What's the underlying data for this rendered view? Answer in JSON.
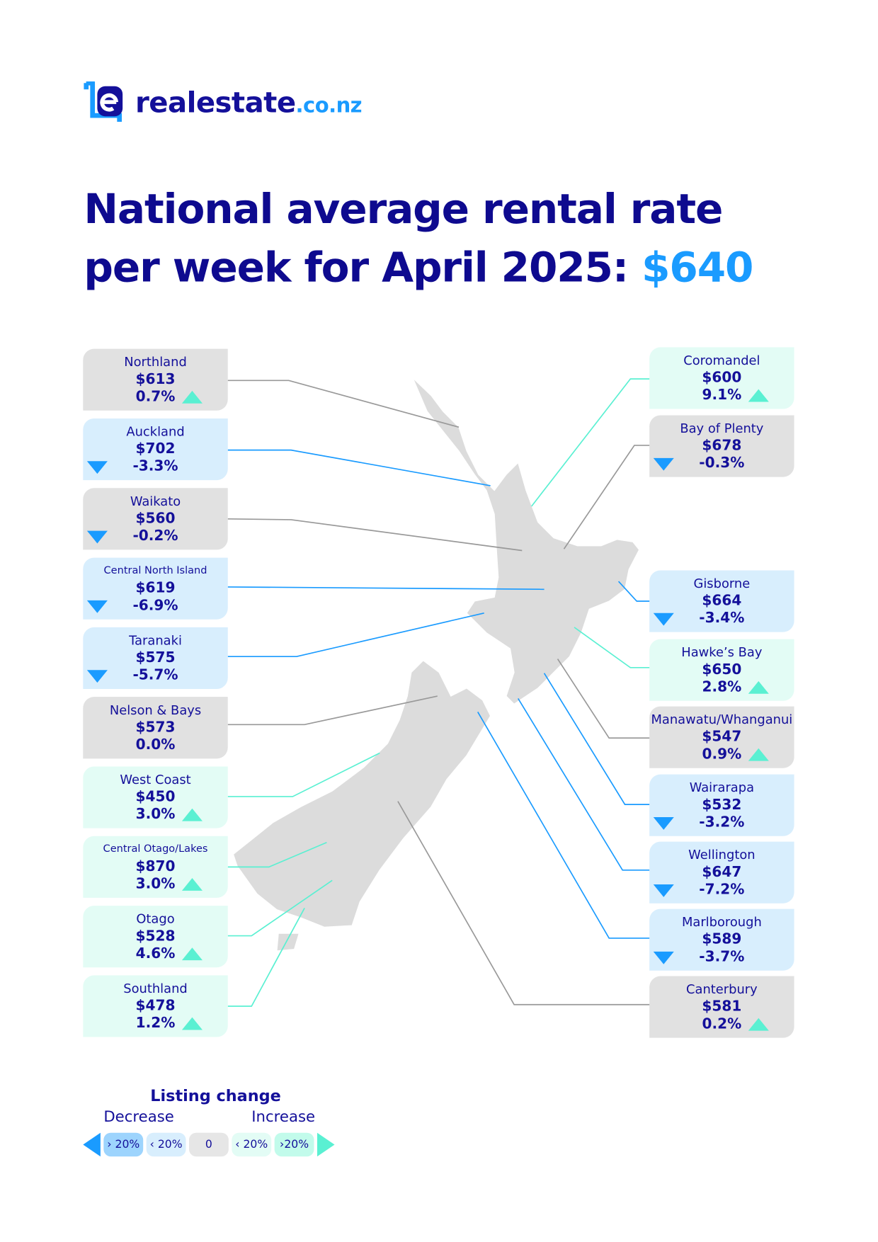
{
  "logo": {
    "name": "realestate",
    "suffix": ".co.nz"
  },
  "title": {
    "line1": "National average rental rate",
    "line2": "per week for April 2025: ",
    "price": "$640"
  },
  "colors": {
    "navy": "#14109a",
    "accent": "#1a9bff",
    "increase": "#5af0d2",
    "neutral_card": "#e1e1e1",
    "decrease_card": "#d8eefd",
    "increase_card": "#e3fcf5"
  },
  "regions_left": [
    {
      "name": "Northland",
      "price": "$613",
      "change": "0.7%",
      "direction": "up"
    },
    {
      "name": "Auckland",
      "price": "$702",
      "change": "-3.3%",
      "direction": "down"
    },
    {
      "name": "Waikato",
      "price": "$560",
      "change": "-0.2%",
      "direction": "down"
    },
    {
      "name": "Central North Island",
      "price": "$619",
      "change": "-6.9%",
      "direction": "down"
    },
    {
      "name": "Taranaki",
      "price": "$575",
      "change": "-5.7%",
      "direction": "down"
    },
    {
      "name": "Nelson & Bays",
      "price": "$573",
      "change": "0.0%",
      "direction": "none"
    },
    {
      "name": "West Coast",
      "price": "$450",
      "change": "3.0%",
      "direction": "up"
    },
    {
      "name": "Central Otago/Lakes",
      "price": "$870",
      "change": "3.0%",
      "direction": "up"
    },
    {
      "name": "Otago",
      "price": "$528",
      "change": "4.6%",
      "direction": "up"
    },
    {
      "name": "Southland",
      "price": "$478",
      "change": "1.2%",
      "direction": "up"
    }
  ],
  "regions_right": [
    {
      "name": "Coromandel",
      "price": "$600",
      "change": "9.1%",
      "direction": "up"
    },
    {
      "name": "Bay of Plenty",
      "price": "$678",
      "change": "-0.3%",
      "direction": "down"
    },
    {
      "name": "Gisborne",
      "price": "$664",
      "change": "-3.4%",
      "direction": "down"
    },
    {
      "name": "Hawke’s Bay",
      "price": "$650",
      "change": "2.8%",
      "direction": "up"
    },
    {
      "name": "Manawatu/Whanganui",
      "price": "$547",
      "change": "0.9%",
      "direction": "up"
    },
    {
      "name": "Wairarapa",
      "price": "$532",
      "change": "-3.2%",
      "direction": "down"
    },
    {
      "name": "Wellington",
      "price": "$647",
      "change": "-7.2%",
      "direction": "down"
    },
    {
      "name": "Marlborough",
      "price": "$589",
      "change": "-3.7%",
      "direction": "down"
    },
    {
      "name": "Canterbury",
      "price": "$581",
      "change": "0.2%",
      "direction": "up"
    }
  ],
  "legend": {
    "title": "Listing change",
    "decrease": "Decrease",
    "increase": "Increase",
    "chips": [
      "› 20%",
      "‹ 20%",
      "0",
      "‹ 20%",
      "›20%"
    ]
  }
}
